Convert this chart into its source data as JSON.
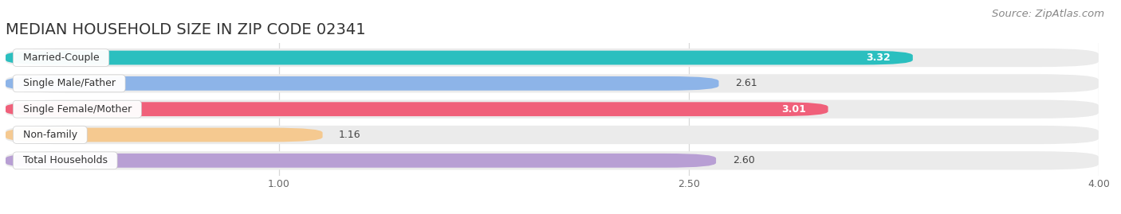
{
  "title": "MEDIAN HOUSEHOLD SIZE IN ZIP CODE 02341",
  "source": "Source: ZipAtlas.com",
  "categories": [
    "Married-Couple",
    "Single Male/Father",
    "Single Female/Mother",
    "Non-family",
    "Total Households"
  ],
  "values": [
    3.32,
    2.61,
    3.01,
    1.16,
    2.6
  ],
  "bar_colors": [
    "#2bbfbf",
    "#8db4e8",
    "#f0607a",
    "#f5c990",
    "#b89fd4"
  ],
  "xlim_min": 0,
  "xlim_max": 4.0,
  "xticks": [
    1.0,
    2.5,
    4.0
  ],
  "background_color": "#ffffff",
  "bar_bg_color": "#ebebeb",
  "grid_color": "#d8d8d8",
  "title_fontsize": 14,
  "source_fontsize": 9.5,
  "bar_label_fontsize": 9,
  "category_fontsize": 9,
  "tick_fontsize": 9
}
